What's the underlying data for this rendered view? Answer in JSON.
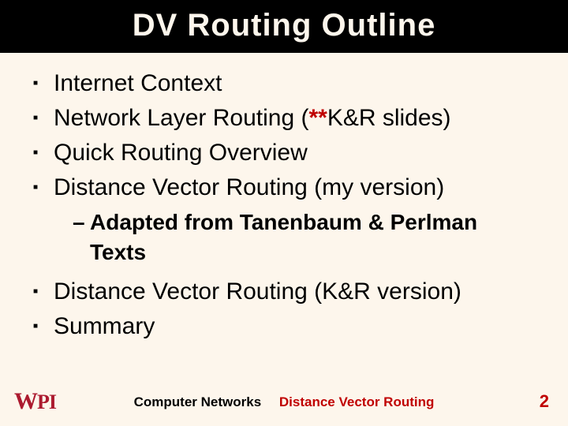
{
  "title": "DV Routing Outline",
  "bullets_top": [
    {
      "text": "Internet Context"
    },
    {
      "text_pre": "Network Layer Routing (",
      "star": "**",
      "text_post": "K&R slides)"
    },
    {
      "text": "Quick Routing Overview"
    },
    {
      "text": "Distance Vector Routing (my version)"
    }
  ],
  "sub_bullet": "Adapted from Tanenbaum & Perlman Texts",
  "bullets_bottom": [
    {
      "text": "Distance Vector Routing (K&R version)"
    },
    {
      "text": "Summary"
    }
  ],
  "footer": {
    "logo_w": "W",
    "logo_pi": "PI",
    "left": "Computer Networks",
    "right": "Distance Vector Routing",
    "page": "2"
  },
  "colors": {
    "background": "#fdf6ec",
    "title_bg": "#000000",
    "title_fg": "#fdf6ec",
    "accent_red": "#c00000",
    "logo_red": "#ac1a2f",
    "text": "#000000"
  }
}
